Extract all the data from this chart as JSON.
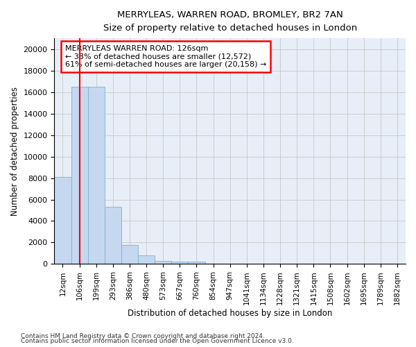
{
  "title": "MERRYLEAS, WARREN ROAD, BROMLEY, BR2 7AN",
  "subtitle": "Size of property relative to detached houses in London",
  "xlabel": "Distribution of detached houses by size in London",
  "ylabel": "Number of detached properties",
  "bar_labels": [
    "12sqm",
    "106sqm",
    "199sqm",
    "293sqm",
    "386sqm",
    "480sqm",
    "573sqm",
    "667sqm",
    "760sqm",
    "854sqm",
    "947sqm",
    "1041sqm",
    "1134sqm",
    "1228sqm",
    "1321sqm",
    "1415sqm",
    "1508sqm",
    "1602sqm",
    "1695sqm",
    "1789sqm",
    "1882sqm"
  ],
  "bar_heights": [
    8100,
    16500,
    16500,
    5300,
    1800,
    800,
    300,
    200,
    200,
    0,
    0,
    0,
    0,
    0,
    0,
    0,
    0,
    0,
    0,
    0,
    0
  ],
  "bar_color": "#c5d8f0",
  "bar_edge_color": "#7bafd4",
  "grid_color": "#cccccc",
  "background_color": "#e8eef8",
  "red_line_x": 1,
  "annotation_text": "MERRYLEAS WARREN ROAD: 126sqm\n← 38% of detached houses are smaller (12,572)\n61% of semi-detached houses are larger (20,158) →",
  "annotation_box_color": "white",
  "annotation_box_edge_color": "red",
  "ylim": [
    0,
    21000
  ],
  "yticks": [
    0,
    2000,
    4000,
    6000,
    8000,
    10000,
    12000,
    14000,
    16000,
    18000,
    20000
  ],
  "footnote1": "Contains HM Land Registry data © Crown copyright and database right 2024.",
  "footnote2": "Contains public sector information licensed under the Open Government Licence v3.0."
}
